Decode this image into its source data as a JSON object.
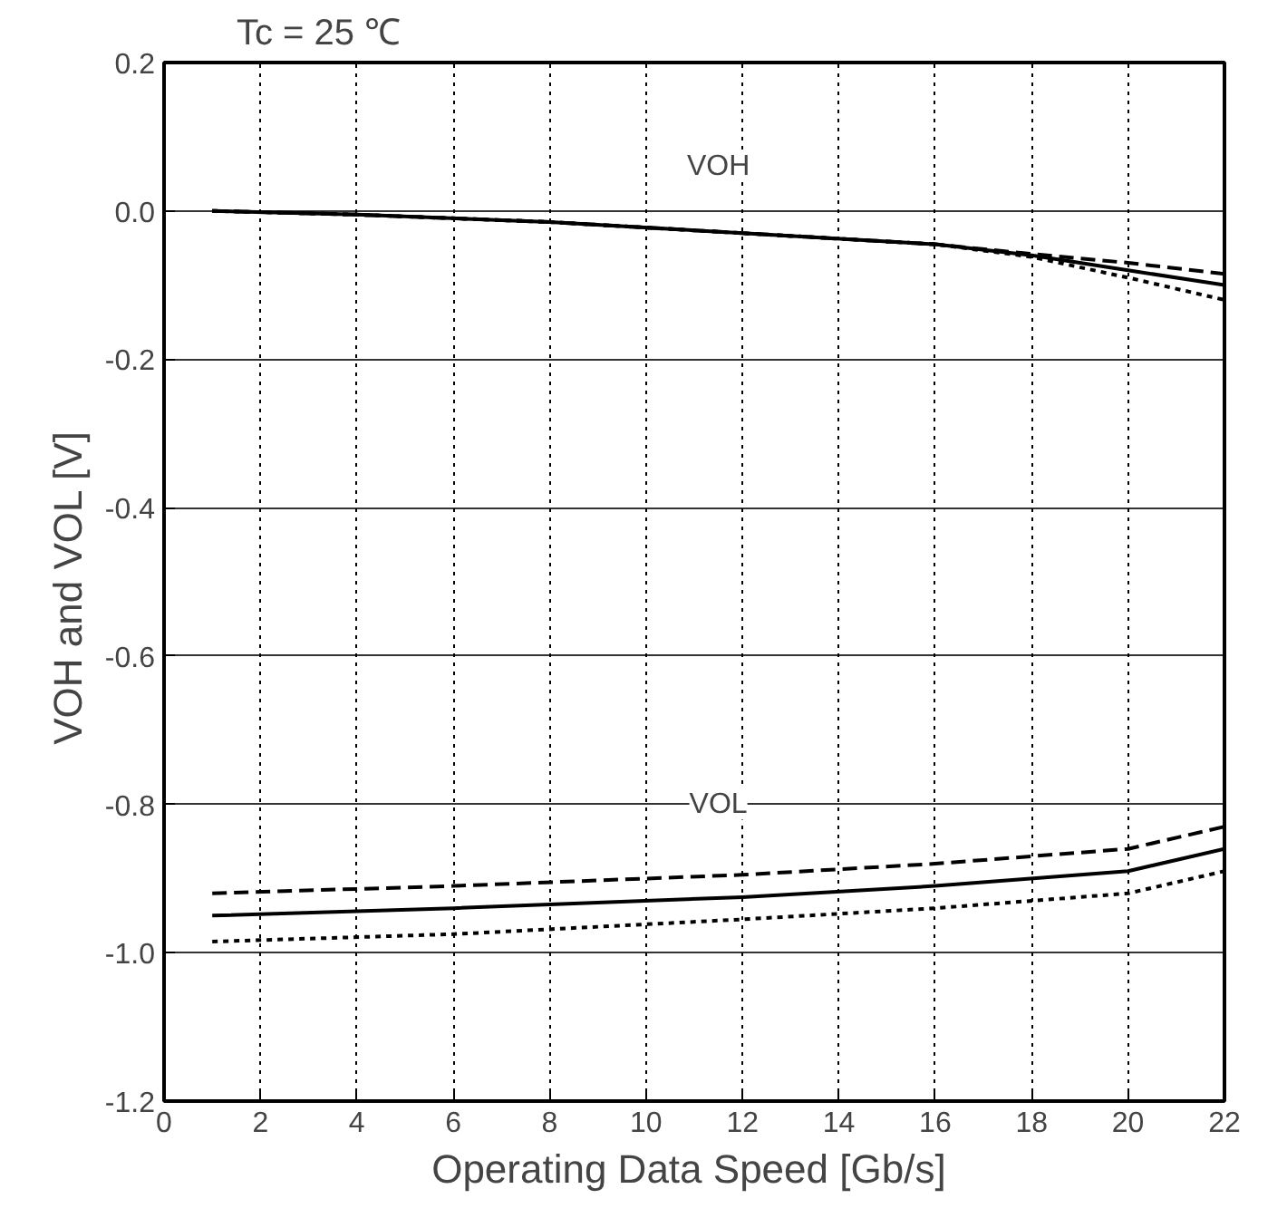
{
  "chart_data": {
    "type": "line",
    "title": "Tc = 25 ℃",
    "xlabel": "Operating Data Speed  [Gb/s]",
    "ylabel": "VOH and VOL  [V]",
    "xlim": [
      0,
      22
    ],
    "xticks": [
      0,
      2,
      4,
      6,
      8,
      10,
      12,
      14,
      16,
      18,
      20,
      22
    ],
    "ylim": [
      -1.2,
      0.2
    ],
    "yticks": [
      0.2,
      {
        "value": 0,
        "label": "0.0"
      },
      -0.2,
      -0.4,
      -0.6,
      -0.8,
      {
        "value": -1,
        "label": "-1.0"
      },
      -1.2
    ],
    "grid": true,
    "marker": "none",
    "annotations": [
      {
        "text": "VOH",
        "x": 11.5,
        "y": 0.06
      },
      {
        "text": "VOL",
        "x": 11.5,
        "y": -0.8
      }
    ],
    "series": [
      {
        "color": "#000000",
        "line_style": "solid",
        "x": [
          1,
          4,
          8,
          12,
          16,
          18,
          20,
          22
        ],
        "values": [
          0,
          -0.005,
          -0.015,
          -0.03,
          -0.045,
          -0.06,
          -0.08,
          -0.1
        ]
      },
      {
        "color": "#000000",
        "line_style": "dashed",
        "x": [
          1,
          4,
          8,
          12,
          16,
          18,
          20,
          22
        ],
        "values": [
          0,
          -0.005,
          -0.015,
          -0.03,
          -0.045,
          -0.058,
          -0.07,
          -0.085
        ]
      },
      {
        "color": "#000000",
        "line_style": "dotted",
        "x": [
          1,
          4,
          8,
          12,
          16,
          18,
          20,
          22
        ],
        "values": [
          0,
          -0.005,
          -0.015,
          -0.03,
          -0.045,
          -0.062,
          -0.09,
          -0.12
        ]
      },
      {
        "color": "#000000",
        "line_style": "dashed",
        "x": [
          1,
          6,
          12,
          16,
          20,
          22
        ],
        "values": [
          -0.92,
          -0.91,
          -0.895,
          -0.88,
          -0.86,
          -0.83
        ]
      },
      {
        "color": "#000000",
        "line_style": "solid",
        "x": [
          1,
          6,
          12,
          16,
          20,
          22
        ],
        "values": [
          -0.95,
          -0.94,
          -0.925,
          -0.91,
          -0.89,
          -0.86
        ]
      },
      {
        "color": "#000000",
        "line_style": "dotted",
        "x": [
          1,
          6,
          12,
          16,
          20,
          22
        ],
        "values": [
          -0.985,
          -0.975,
          -0.955,
          -0.94,
          -0.92,
          -0.89
        ]
      }
    ]
  }
}
